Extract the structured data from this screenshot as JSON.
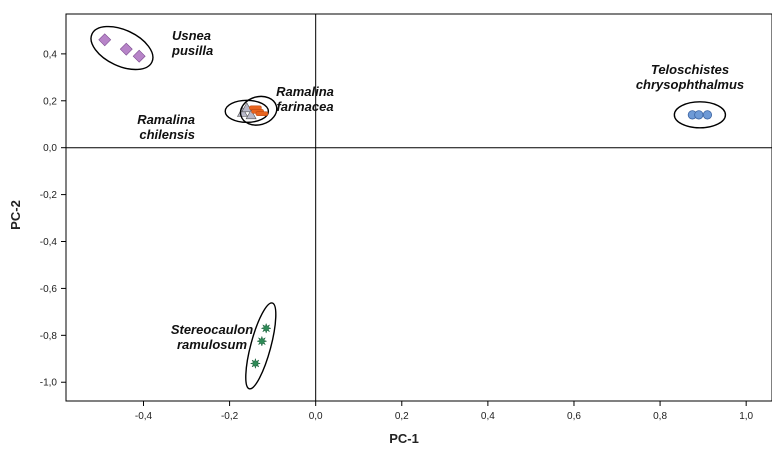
{
  "chart_data": {
    "type": "scatter",
    "title": "",
    "xlabel": "PC-1",
    "ylabel": "PC-2",
    "xlim": [
      -0.58,
      1.06
    ],
    "ylim": [
      -1.08,
      0.57
    ],
    "x_ticks": [
      "-0,4",
      "-0,2",
      "0,0",
      "0,2",
      "0,4",
      "0,6",
      "0,8",
      "1,0"
    ],
    "x_tick_values": [
      -0.4,
      -0.2,
      0.0,
      0.2,
      0.4,
      0.6,
      0.8,
      1.0
    ],
    "y_ticks": [
      "0,4",
      "0,2",
      "0,0",
      "-0,2",
      "-0,4",
      "-0,6",
      "-0,8",
      "-1,0"
    ],
    "y_tick_values": [
      0.4,
      0.2,
      0.0,
      -0.2,
      -0.4,
      -0.6,
      -0.8,
      -1.0
    ],
    "grid": false,
    "reference_lines": {
      "x": 0,
      "y": 0
    },
    "series": [
      {
        "name": "Usnea pusilla",
        "label_lines": [
          "Usnea",
          "pusilla"
        ],
        "marker": "diamond",
        "color": "#B784C8",
        "points": [
          {
            "x": -0.49,
            "y": 0.46
          },
          {
            "x": -0.44,
            "y": 0.42
          },
          {
            "x": -0.41,
            "y": 0.39
          }
        ]
      },
      {
        "name": "Ramalina chilensis",
        "label_lines": [
          "Ramalina",
          "chilensis"
        ],
        "marker": "triangle",
        "color": "#B8B8C8",
        "points": [
          {
            "x": -0.17,
            "y": 0.15
          },
          {
            "x": -0.16,
            "y": 0.17
          },
          {
            "x": -0.15,
            "y": 0.14
          }
        ]
      },
      {
        "name": "Ramalina farinacea",
        "label_lines": [
          "Ramalina",
          "farinacea"
        ],
        "marker": "bar",
        "color": "#E8641E",
        "points": [
          {
            "x": -0.14,
            "y": 0.17
          },
          {
            "x": -0.135,
            "y": 0.155
          },
          {
            "x": -0.125,
            "y": 0.145
          }
        ]
      },
      {
        "name": "Teloschistes chrysophthalmus",
        "label_lines": [
          "Teloschistes",
          "chrysophthalmus"
        ],
        "marker": "circle",
        "color": "#6E9AD6",
        "points": [
          {
            "x": 0.875,
            "y": 0.14
          },
          {
            "x": 0.89,
            "y": 0.14
          },
          {
            "x": 0.91,
            "y": 0.14
          }
        ]
      },
      {
        "name": "Stereocaulon ramulosum",
        "label_lines": [
          "Stereocaulon",
          "ramulosum"
        ],
        "marker": "star",
        "color": "#2E8B57",
        "points": [
          {
            "x": -0.115,
            "y": -0.77
          },
          {
            "x": -0.125,
            "y": -0.825
          },
          {
            "x": -0.14,
            "y": -0.92
          }
        ]
      }
    ]
  }
}
